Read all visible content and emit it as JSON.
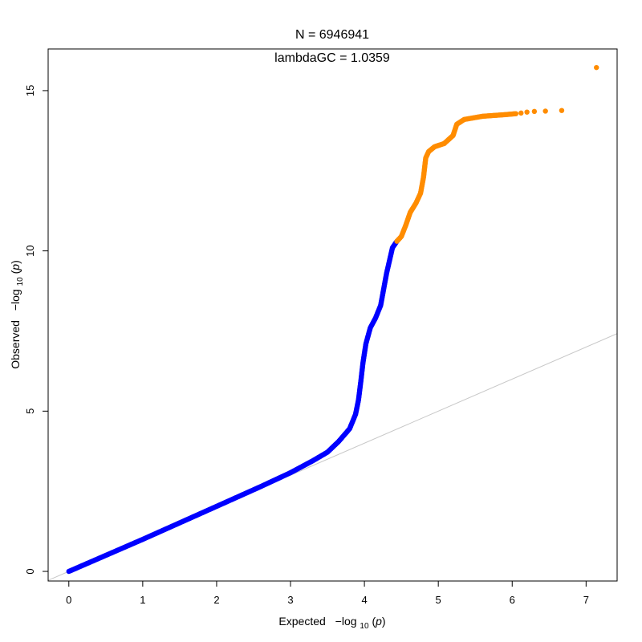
{
  "chart_data": {
    "type": "scatter",
    "title_lines": [
      "N = 6946941",
      "lambdaGC = 1.0359"
    ],
    "xlabel": {
      "prefix": "Expected",
      "expr": "−log",
      "sub": "10",
      "var": "p"
    },
    "ylabel": {
      "prefix": "Observed",
      "expr": "−log",
      "sub": "10",
      "var": "p"
    },
    "xlim": [
      -0.28,
      7.42
    ],
    "ylim": [
      -0.3,
      16.3
    ],
    "x_ticks": [
      0,
      1,
      2,
      3,
      4,
      5,
      6,
      7
    ],
    "x_tick_labels": [
      "0",
      "1",
      "2",
      "3",
      "4",
      "5",
      "6",
      "7"
    ],
    "y_ticks": [
      0,
      5,
      10,
      15
    ],
    "y_tick_labels": [
      "0",
      "5",
      "10",
      "15"
    ],
    "reference_line": {
      "slope": 1,
      "intercept": 0,
      "color": "#c8c8c8"
    },
    "grid": false,
    "colors": {
      "below_threshold": "#0000ff",
      "above_threshold": "#ff8c00"
    },
    "series": [
      {
        "color": "#0000ff",
        "curve": [
          [
            0.0,
            0.0
          ],
          [
            1.0,
            1.0
          ],
          [
            2.0,
            2.03
          ],
          [
            2.6,
            2.65
          ],
          [
            3.0,
            3.08
          ],
          [
            3.3,
            3.45
          ],
          [
            3.5,
            3.72
          ],
          [
            3.65,
            4.05
          ],
          [
            3.8,
            4.45
          ],
          [
            3.88,
            4.9
          ],
          [
            3.92,
            5.35
          ],
          [
            3.95,
            5.9
          ],
          [
            3.98,
            6.5
          ],
          [
            4.02,
            7.1
          ],
          [
            4.08,
            7.6
          ],
          [
            4.15,
            7.9
          ],
          [
            4.22,
            8.3
          ],
          [
            4.26,
            8.8
          ],
          [
            4.3,
            9.3
          ],
          [
            4.34,
            9.7
          ],
          [
            4.38,
            10.1
          ],
          [
            4.44,
            10.3
          ]
        ]
      },
      {
        "color": "#ff8c00",
        "curve": [
          [
            4.44,
            10.3
          ],
          [
            4.5,
            10.45
          ],
          [
            4.56,
            10.8
          ],
          [
            4.62,
            11.2
          ],
          [
            4.7,
            11.5
          ],
          [
            4.76,
            11.8
          ],
          [
            4.8,
            12.3
          ],
          [
            4.83,
            12.9
          ],
          [
            4.87,
            13.1
          ],
          [
            4.95,
            13.25
          ],
          [
            5.08,
            13.35
          ],
          [
            5.2,
            13.6
          ],
          [
            5.25,
            13.95
          ],
          [
            5.35,
            14.1
          ],
          [
            5.6,
            14.2
          ],
          [
            5.9,
            14.25
          ],
          [
            6.05,
            14.28
          ]
        ],
        "points": [
          [
            6.12,
            14.3
          ],
          [
            6.2,
            14.33
          ],
          [
            6.3,
            14.35
          ],
          [
            6.45,
            14.36
          ],
          [
            6.67,
            14.38
          ],
          [
            7.14,
            15.72
          ]
        ]
      }
    ]
  }
}
